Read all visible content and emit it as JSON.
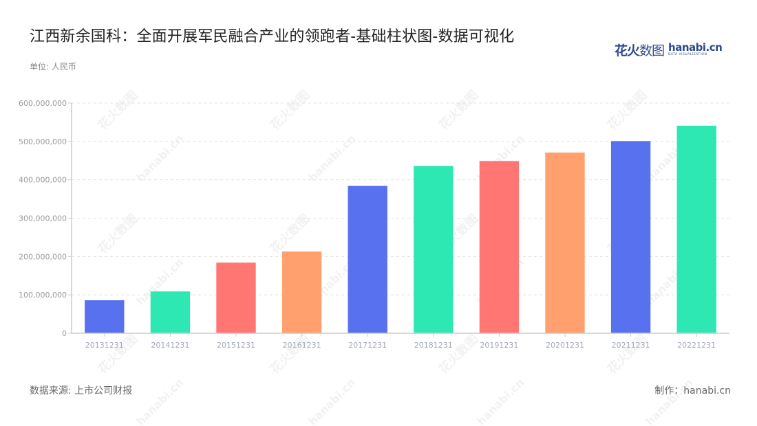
{
  "header": {
    "title": "江西新余国科：全面开展军民融合产业的领跑者-基础柱状图-数据可视化",
    "unit": "单位: 人民币"
  },
  "logo": {
    "cn_bold": "花火",
    "cn_thin": "数图",
    "en_main": "hanabi.cn",
    "en_sub": "DATA VISUALIZATION"
  },
  "footer": {
    "source": "数据来源: 上市公司财报",
    "credit": "制作：hanabi.cn"
  },
  "watermark": {
    "cn": "花火数图",
    "en": "hanabi.cn"
  },
  "chart_data": {
    "type": "bar",
    "title": "江西新余国科：全面开展军民融合产业的领跑者-基础柱状图-数据可视化",
    "xlabel": "",
    "ylabel": "单位: 人民币",
    "ylim": [
      0,
      600000000
    ],
    "yticks": [
      0,
      100000000,
      200000000,
      300000000,
      400000000,
      500000000,
      600000000
    ],
    "ytick_labels": [
      "0",
      "100,000,000",
      "200,000,000",
      "300,000,000",
      "400,000,000",
      "500,000,000",
      "600,000,000"
    ],
    "grid": true,
    "legend": "none",
    "categories": [
      "20131231",
      "20141231",
      "20151231",
      "20161231",
      "20171231",
      "20181231",
      "20191231",
      "20201231",
      "20211231",
      "20221231"
    ],
    "values": [
      86000000,
      109000000,
      184000000,
      213000000,
      384000000,
      436000000,
      449000000,
      471000000,
      501000000,
      541000000
    ],
    "colors": [
      "#5872ef",
      "#2de8b2",
      "#ff7672",
      "#ffa06e",
      "#5872ef",
      "#2de8b2",
      "#ff7672",
      "#ffa06e",
      "#5872ef",
      "#2de8b2"
    ]
  }
}
